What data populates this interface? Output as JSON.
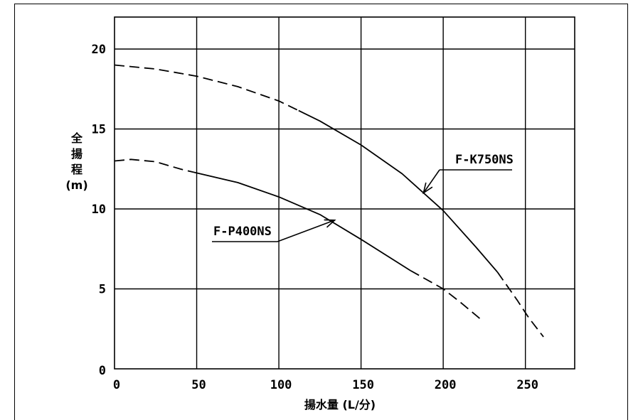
{
  "chart_data": {
    "type": "line",
    "title": "",
    "xlabel": "揚水量 (L/分)",
    "ylabel": [
      "全",
      "揚",
      "程",
      "(m)"
    ],
    "xlim": [
      0,
      280
    ],
    "ylim": [
      0,
      22
    ],
    "x_ticks": [
      0,
      50,
      100,
      150,
      200,
      250
    ],
    "y_ticks": [
      0,
      5,
      10,
      15,
      20
    ],
    "grid": true,
    "series": [
      {
        "name": "F-K750NS",
        "segments": [
          {
            "style": "dashed",
            "points": [
              [
                0,
                19.0
              ],
              [
                25,
                18.75
              ],
              [
                50,
                18.3
              ],
              [
                75,
                17.65
              ],
              [
                100,
                16.75
              ],
              [
                112,
                16.15
              ]
            ]
          },
          {
            "style": "solid",
            "points": [
              [
                112,
                16.15
              ],
              [
                125,
                15.5
              ],
              [
                150,
                14.0
              ],
              [
                175,
                12.2
              ],
              [
                200,
                9.9
              ],
              [
                220,
                7.6
              ],
              [
                233,
                6.05
              ]
            ]
          },
          {
            "style": "dashed",
            "points": [
              [
                233,
                6.05
              ],
              [
                245,
                4.3
              ],
              [
                252,
                3.2
              ],
              [
                261,
                2.0
              ]
            ]
          }
        ]
      },
      {
        "name": "F-P400NS",
        "segments": [
          {
            "style": "dashed",
            "points": [
              [
                0,
                13.0
              ],
              [
                10,
                13.1
              ],
              [
                25,
                12.95
              ],
              [
                40,
                12.5
              ],
              [
                48,
                12.3
              ]
            ]
          },
          {
            "style": "solid",
            "points": [
              [
                48,
                12.3
              ],
              [
                75,
                11.65
              ],
              [
                100,
                10.75
              ],
              [
                125,
                9.65
              ],
              [
                150,
                8.1
              ],
              [
                170,
                6.8
              ],
              [
                180,
                6.15
              ]
            ]
          },
          {
            "style": "dashed",
            "points": [
              [
                180,
                6.15
              ],
              [
                200,
                5.0
              ],
              [
                210,
                4.2
              ],
              [
                224,
                3.0
              ]
            ]
          }
        ]
      }
    ],
    "annotations": [
      {
        "text": "F-K750NS",
        "arrow_to": [
          188,
          11.0
        ]
      },
      {
        "text": "F-P400NS",
        "arrow_to": [
          134,
          9.3
        ]
      }
    ]
  }
}
